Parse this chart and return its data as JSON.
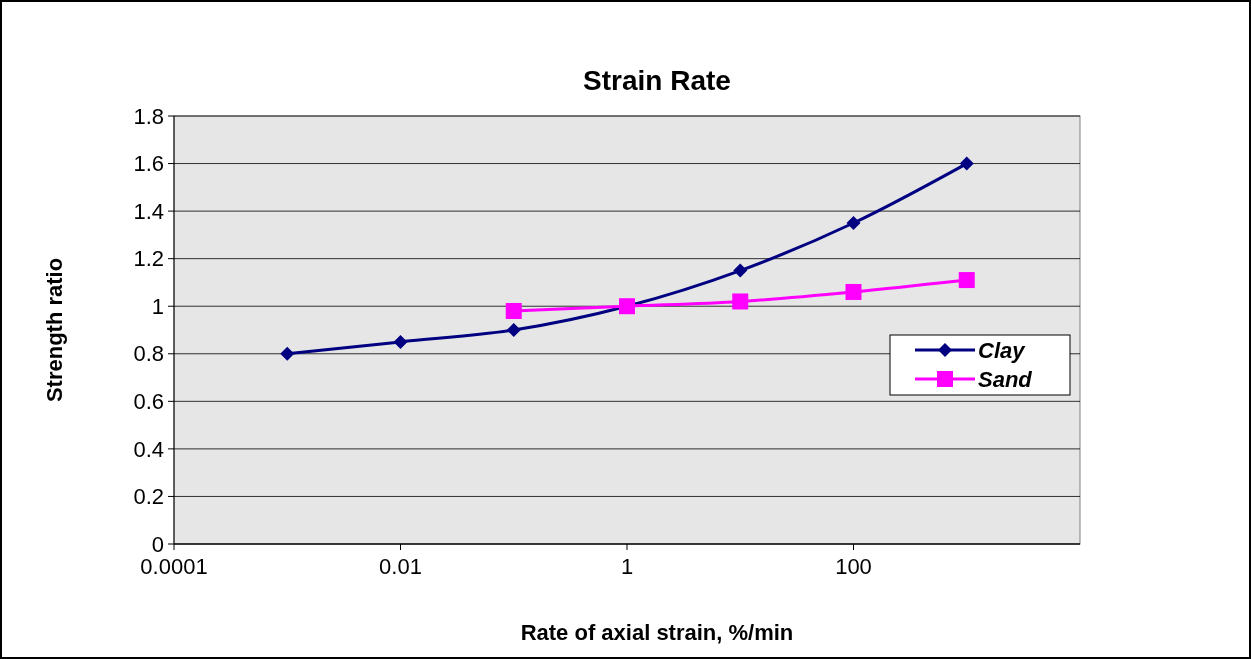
{
  "chart_data": {
    "type": "line",
    "title": "Strain Rate",
    "xlabel": "Rate  of axial strain, %/min",
    "ylabel": "Strength ratio",
    "log": "x",
    "xlim": [
      0.0001,
      10000
    ],
    "xticks": [
      0.0001,
      0.01,
      1,
      100
    ],
    "ylim": [
      0,
      1.8
    ],
    "yticks": [
      0,
      0.2,
      0.4,
      0.6,
      0.8,
      1,
      1.2,
      1.4,
      1.6,
      1.8
    ],
    "grid": "y",
    "legend": "right",
    "series": [
      {
        "name": "Clay",
        "color": "#000080",
        "marker": "diamond",
        "x": [
          0.001,
          0.01,
          0.1,
          1,
          10,
          100,
          1000
        ],
        "values": [
          0.8,
          0.85,
          0.9,
          1.0,
          1.15,
          1.35,
          1.6
        ]
      },
      {
        "name": "Sand",
        "color": "#ff00ff",
        "marker": "square",
        "x": [
          0.1,
          1,
          10,
          100,
          1000
        ],
        "values": [
          0.98,
          1.0,
          1.02,
          1.06,
          1.11
        ]
      }
    ]
  }
}
